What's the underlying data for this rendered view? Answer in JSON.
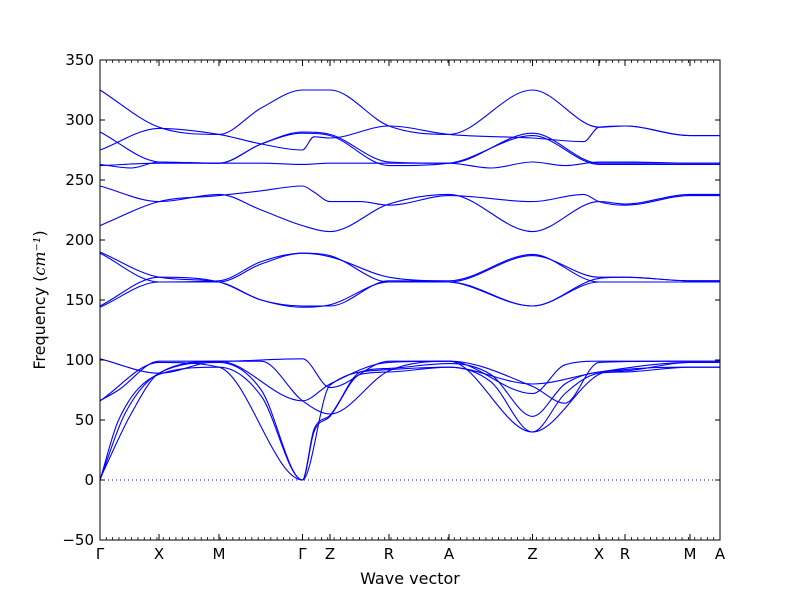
{
  "chart_data": {
    "type": "line",
    "title": "",
    "xlabel": "Wave vector",
    "ylabel": "Frequency",
    "ylabel_unit": "cm⁻¹",
    "ylim": [
      -50,
      350
    ],
    "yticks": [
      -50,
      0,
      50,
      100,
      150,
      200,
      250,
      300,
      350
    ],
    "xlim": [
      0,
      1
    ],
    "color": "#0000ff",
    "zero_line_color": "#0000ff",
    "grid": false,
    "legend": "none",
    "kpoints": [
      {
        "label": "Γ",
        "x": 0.0
      },
      {
        "label": "X",
        "x": 0.0952
      },
      {
        "label": "M",
        "x": 0.1919
      },
      {
        "label": "Γ",
        "x": 0.3266
      },
      {
        "label": "Z",
        "x": 0.371
      },
      {
        "label": "R",
        "x": 0.4661
      },
      {
        "label": "A",
        "x": 0.5629
      },
      {
        "label": "Z",
        "x": 0.6976
      },
      {
        "label": "X",
        "x": 0.8048
      },
      {
        "label": "R",
        "x": 0.8468
      },
      {
        "label": "M",
        "x": 0.9516
      },
      {
        "label": "A",
        "x": 1.0
      }
    ],
    "series": [
      {
        "values": [
          [
            0.0,
            0
          ],
          [
            0.03,
            50
          ],
          [
            0.0952,
            88
          ],
          [
            0.1919,
            94
          ],
          [
            0.26,
            70
          ],
          [
            0.3266,
            0
          ],
          [
            0.345,
            40
          ],
          [
            0.371,
            53
          ],
          [
            0.42,
            88
          ],
          [
            0.4661,
            90
          ],
          [
            0.5629,
            94
          ],
          [
            0.63,
            82
          ],
          [
            0.6976,
            40
          ],
          [
            0.75,
            72
          ],
          [
            0.8048,
            89
          ],
          [
            0.8468,
            90
          ],
          [
            0.9516,
            94
          ],
          [
            1.0,
            94
          ]
        ]
      },
      {
        "values": [
          [
            0.0,
            0
          ],
          [
            0.04,
            55
          ],
          [
            0.0952,
            89
          ],
          [
            0.1919,
            98
          ],
          [
            0.26,
            75
          ],
          [
            0.3266,
            0
          ],
          [
            0.345,
            42
          ],
          [
            0.371,
            54
          ],
          [
            0.42,
            90
          ],
          [
            0.4661,
            93
          ],
          [
            0.5629,
            97
          ],
          [
            0.63,
            88
          ],
          [
            0.6976,
            53
          ],
          [
            0.75,
            80
          ],
          [
            0.8048,
            90
          ],
          [
            0.8468,
            91
          ],
          [
            0.9516,
            98
          ],
          [
            1.0,
            98
          ]
        ]
      },
      {
        "values": [
          [
            0.0,
            1
          ],
          [
            0.05,
            55
          ],
          [
            0.0952,
            89
          ],
          [
            0.1919,
            99
          ],
          [
            0.3266,
            66
          ],
          [
            0.371,
            80
          ],
          [
            0.4661,
            98
          ],
          [
            0.5629,
            99
          ],
          [
            0.6976,
            78
          ],
          [
            0.75,
            64
          ],
          [
            0.8048,
            98
          ],
          [
            0.9516,
            99
          ],
          [
            1.0,
            99
          ]
        ]
      },
      {
        "values": [
          [
            0.0,
            66
          ],
          [
            0.03,
            75
          ],
          [
            0.0952,
            99
          ],
          [
            0.1919,
            99
          ],
          [
            0.3266,
            101
          ],
          [
            0.371,
            77
          ],
          [
            0.4661,
            99
          ],
          [
            0.5629,
            99
          ],
          [
            0.6976,
            72
          ],
          [
            0.75,
            96
          ],
          [
            0.8048,
            99
          ],
          [
            0.9516,
            99
          ],
          [
            1.0,
            99
          ]
        ]
      },
      {
        "values": [
          [
            0.0,
            101
          ],
          [
            0.0952,
            89
          ],
          [
            0.1919,
            99
          ],
          [
            0.26,
            99
          ],
          [
            0.3266,
            66
          ],
          [
            0.371,
            55
          ],
          [
            0.4661,
            91
          ],
          [
            0.5629,
            99
          ],
          [
            0.6976,
            40
          ],
          [
            0.8048,
            88
          ],
          [
            0.8468,
            92
          ],
          [
            0.9516,
            94
          ],
          [
            1.0,
            94
          ]
        ]
      },
      {
        "values": [
          [
            0.0,
            66
          ],
          [
            0.0952,
            98
          ],
          [
            0.1919,
            94
          ],
          [
            0.3266,
            0
          ],
          [
            0.371,
            79
          ],
          [
            0.4661,
            92
          ],
          [
            0.5629,
            94
          ],
          [
            0.6976,
            80
          ],
          [
            0.8048,
            90
          ],
          [
            0.9516,
            98
          ],
          [
            1.0,
            98
          ]
        ]
      },
      {
        "values": [
          [
            0.0,
            144
          ],
          [
            0.0952,
            165
          ],
          [
            0.1919,
            165
          ],
          [
            0.26,
            180
          ],
          [
            0.3266,
            189
          ],
          [
            0.371,
            187
          ],
          [
            0.4661,
            165
          ],
          [
            0.5629,
            165
          ],
          [
            0.6976,
            145
          ],
          [
            0.8048,
            165
          ],
          [
            0.8468,
            165
          ],
          [
            0.9516,
            165
          ],
          [
            1.0,
            165
          ]
        ]
      },
      {
        "values": [
          [
            0.0,
            145
          ],
          [
            0.0952,
            169
          ],
          [
            0.1919,
            165
          ],
          [
            0.26,
            150
          ],
          [
            0.3266,
            145
          ],
          [
            0.371,
            145
          ],
          [
            0.4661,
            166
          ],
          [
            0.5629,
            165
          ],
          [
            0.6976,
            145
          ],
          [
            0.8048,
            168
          ],
          [
            0.8468,
            169
          ],
          [
            0.9516,
            166
          ],
          [
            1.0,
            166
          ]
        ]
      },
      {
        "values": [
          [
            0.0,
            189
          ],
          [
            0.0952,
            165
          ],
          [
            0.1919,
            166
          ],
          [
            0.26,
            182
          ],
          [
            0.3266,
            189
          ],
          [
            0.371,
            186
          ],
          [
            0.4661,
            169
          ],
          [
            0.5629,
            166
          ],
          [
            0.6976,
            188
          ],
          [
            0.8048,
            165
          ],
          [
            0.8468,
            165
          ],
          [
            0.9516,
            165
          ],
          [
            1.0,
            165
          ]
        ]
      },
      {
        "values": [
          [
            0.0,
            190
          ],
          [
            0.0952,
            169
          ],
          [
            0.1919,
            165
          ],
          [
            0.26,
            150
          ],
          [
            0.3266,
            144
          ],
          [
            0.371,
            146
          ],
          [
            0.4661,
            165
          ],
          [
            0.5629,
            165
          ],
          [
            0.6976,
            187
          ],
          [
            0.8048,
            169
          ],
          [
            0.8468,
            169
          ],
          [
            0.9516,
            166
          ],
          [
            1.0,
            166
          ]
        ]
      },
      {
        "values": [
          [
            0.0,
            212
          ],
          [
            0.0952,
            232
          ],
          [
            0.1919,
            237
          ],
          [
            0.26,
            241
          ],
          [
            0.3266,
            245
          ],
          [
            0.345,
            240
          ],
          [
            0.371,
            232
          ],
          [
            0.42,
            232
          ],
          [
            0.4661,
            229
          ],
          [
            0.5629,
            237
          ],
          [
            0.6976,
            232
          ],
          [
            0.78,
            238
          ],
          [
            0.8048,
            232
          ],
          [
            0.8468,
            229
          ],
          [
            0.9516,
            237
          ],
          [
            1.0,
            237
          ]
        ]
      },
      {
        "values": [
          [
            0.0,
            245
          ],
          [
            0.0952,
            232
          ],
          [
            0.1919,
            238
          ],
          [
            0.26,
            225
          ],
          [
            0.3266,
            212
          ],
          [
            0.371,
            207
          ],
          [
            0.4661,
            230
          ],
          [
            0.5629,
            238
          ],
          [
            0.6976,
            207
          ],
          [
            0.8048,
            232
          ],
          [
            0.8468,
            230
          ],
          [
            0.9516,
            238
          ],
          [
            1.0,
            238
          ]
        ]
      },
      {
        "values": [
          [
            0.0,
            262
          ],
          [
            0.0952,
            264
          ],
          [
            0.1919,
            264
          ],
          [
            0.26,
            280
          ],
          [
            0.3266,
            290
          ],
          [
            0.371,
            288
          ],
          [
            0.4661,
            265
          ],
          [
            0.5629,
            264
          ],
          [
            0.6976,
            289
          ],
          [
            0.8048,
            264
          ],
          [
            0.8468,
            264
          ],
          [
            0.9516,
            264
          ],
          [
            1.0,
            264
          ]
        ]
      },
      {
        "values": [
          [
            0.0,
            263
          ],
          [
            0.05,
            260
          ],
          [
            0.0952,
            265
          ],
          [
            0.1919,
            264
          ],
          [
            0.26,
            264
          ],
          [
            0.3266,
            263
          ],
          [
            0.371,
            264
          ],
          [
            0.4661,
            264
          ],
          [
            0.5629,
            264
          ],
          [
            0.63,
            260
          ],
          [
            0.6976,
            265
          ],
          [
            0.75,
            262
          ],
          [
            0.8048,
            265
          ],
          [
            0.8468,
            265
          ],
          [
            0.9516,
            264
          ],
          [
            1.0,
            264
          ]
        ]
      },
      {
        "values": [
          [
            0.0,
            290
          ],
          [
            0.0952,
            265
          ],
          [
            0.1919,
            264
          ],
          [
            0.26,
            280
          ],
          [
            0.3266,
            289
          ],
          [
            0.371,
            287
          ],
          [
            0.4661,
            262
          ],
          [
            0.5629,
            264
          ],
          [
            0.6976,
            287
          ],
          [
            0.8048,
            263
          ],
          [
            0.8468,
            263
          ],
          [
            0.9516,
            263
          ],
          [
            1.0,
            263
          ]
        ]
      },
      {
        "values": [
          [
            0.0,
            275
          ],
          [
            0.0952,
            293
          ],
          [
            0.1919,
            288
          ],
          [
            0.26,
            280
          ],
          [
            0.3266,
            275
          ],
          [
            0.345,
            286
          ],
          [
            0.371,
            285
          ],
          [
            0.4661,
            295
          ],
          [
            0.5629,
            288
          ],
          [
            0.6976,
            285
          ],
          [
            0.78,
            282
          ],
          [
            0.8048,
            294
          ],
          [
            0.8468,
            295
          ],
          [
            0.9516,
            287
          ],
          [
            1.0,
            287
          ]
        ]
      },
      {
        "values": [
          [
            0.0,
            325
          ],
          [
            0.0952,
            294
          ],
          [
            0.1919,
            288
          ],
          [
            0.26,
            310
          ],
          [
            0.3266,
            325
          ],
          [
            0.371,
            325
          ],
          [
            0.4661,
            295
          ],
          [
            0.5629,
            288
          ],
          [
            0.6976,
            325
          ],
          [
            0.8048,
            294
          ],
          [
            0.8468,
            295
          ],
          [
            0.9516,
            287
          ],
          [
            1.0,
            287
          ]
        ]
      }
    ]
  }
}
